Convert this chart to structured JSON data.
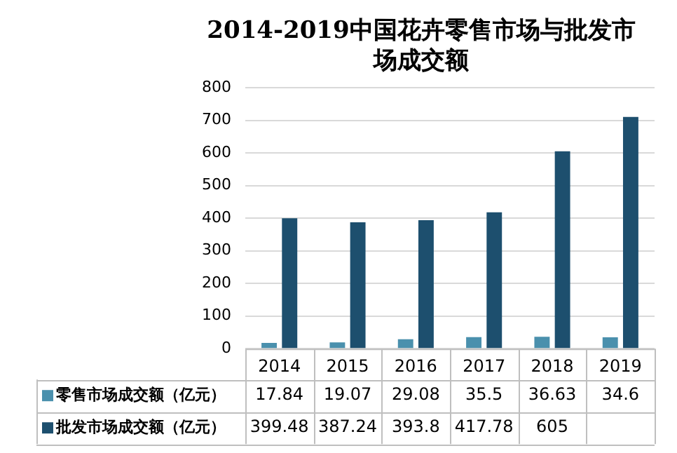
{
  "chart_data": {
    "type": "bar",
    "title": [
      "2014-2019中国花卉零售市场与批发市",
      "场成交额"
    ],
    "categories": [
      "2014",
      "2015",
      "2016",
      "2017",
      "2018",
      "2019"
    ],
    "series": [
      {
        "name": "零售市场成交额（亿元）",
        "color": "#4a90ad",
        "values": [
          17.84,
          19.07,
          29.08,
          35.5,
          36.63,
          34.6
        ],
        "value_labels": [
          "17.84",
          "19.07",
          "29.08",
          "35.5",
          "36.63",
          "34.6"
        ]
      },
      {
        "name": "批发市场成交额（亿元）",
        "color": "#1d4f6e",
        "values": [
          399.48,
          387.24,
          393.8,
          417.78,
          605,
          710
        ],
        "value_labels": [
          "399.48",
          "387.24",
          "393.8",
          "417.78",
          "605",
          null
        ]
      }
    ],
    "ylim": [
      0,
      800
    ],
    "yticks": [
      0,
      100,
      200,
      300,
      400,
      500,
      600,
      700,
      800
    ],
    "grid": "y",
    "legend": "bottom"
  }
}
